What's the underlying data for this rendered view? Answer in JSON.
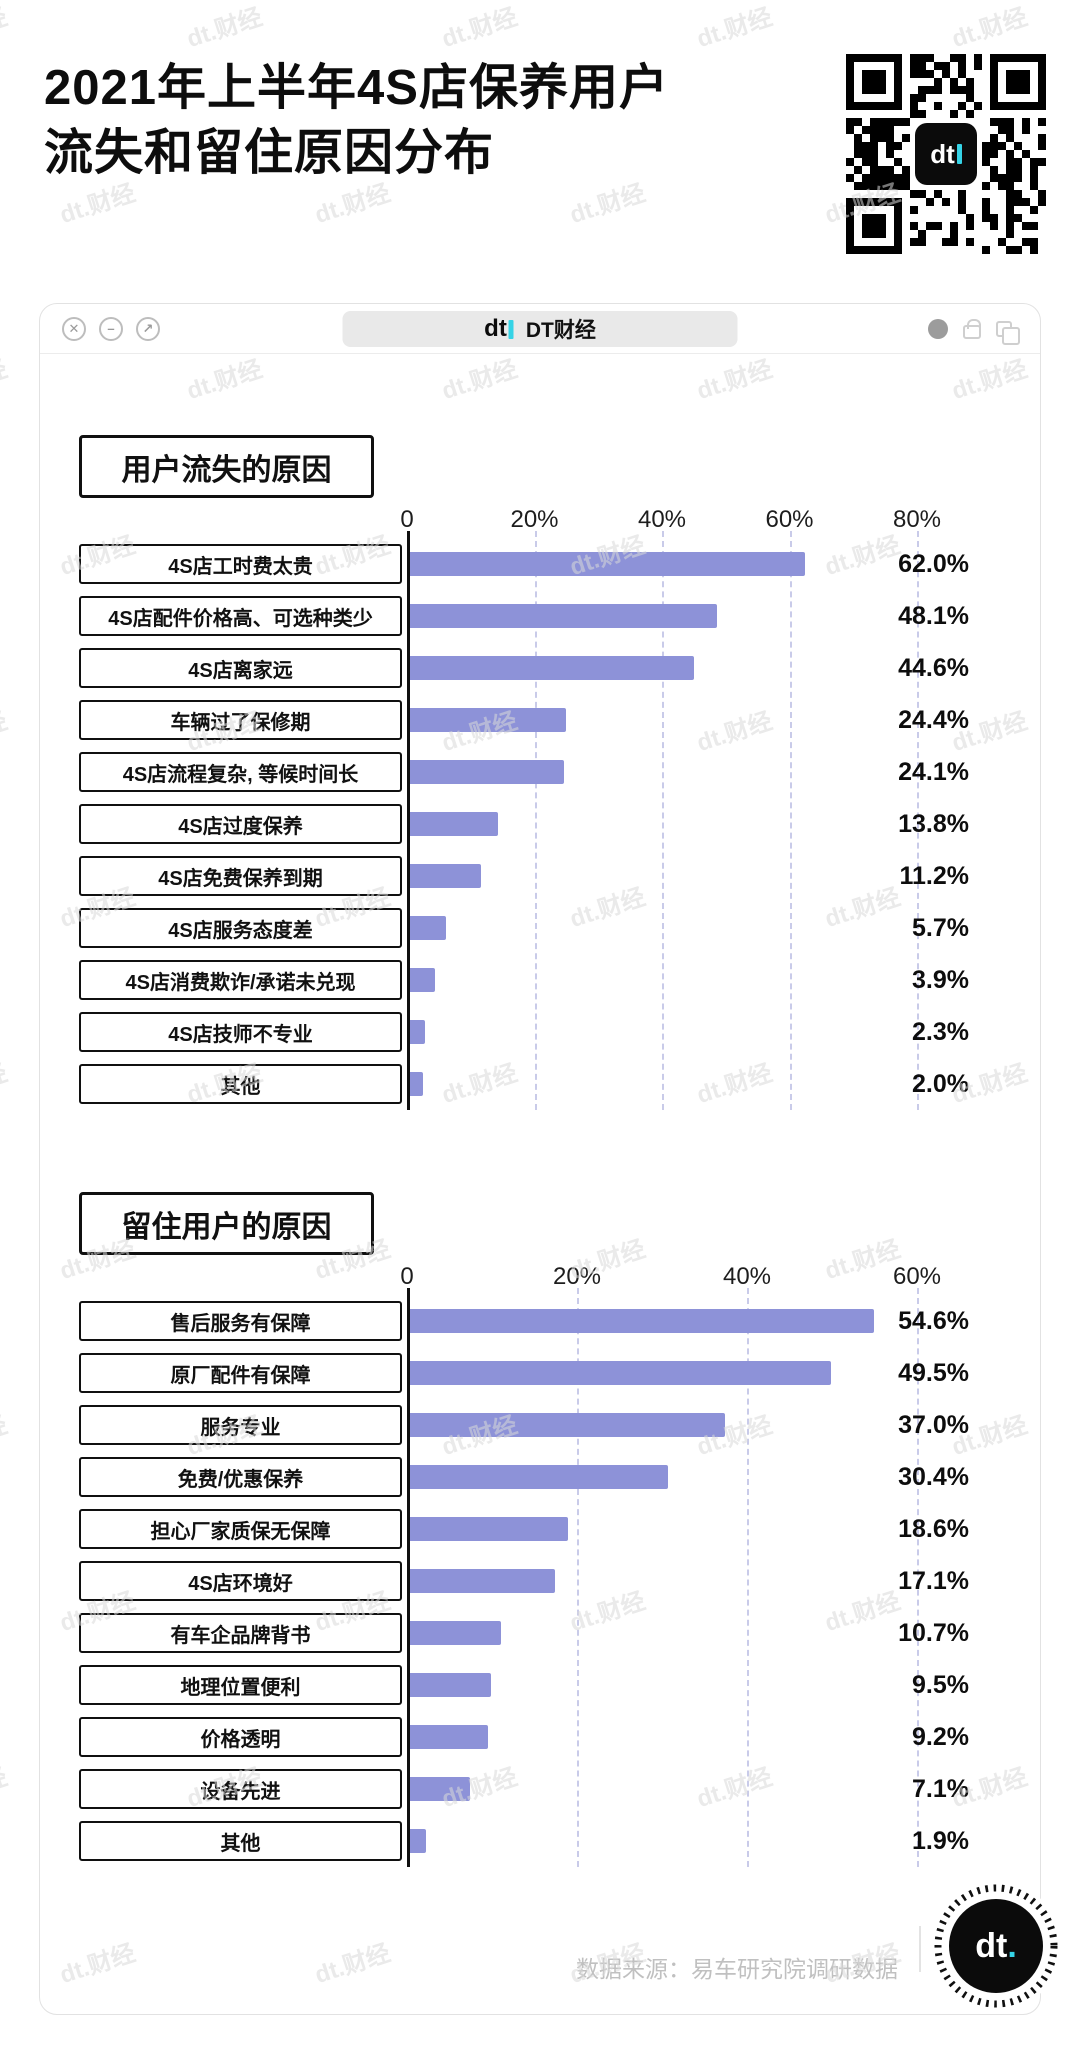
{
  "page": {
    "title_line1": "2021年上半年4S店保养用户",
    "title_line2": "流失和留住原因分布",
    "watermark_text": "dt.财经"
  },
  "qr": {
    "center_logo": "dt"
  },
  "window": {
    "brand_logo": "dt",
    "brand_name": "DT财经",
    "controls": [
      {
        "name": "close",
        "glyph": "✕"
      },
      {
        "name": "minimize",
        "glyph": "–"
      },
      {
        "name": "external",
        "glyph": "↗"
      }
    ]
  },
  "footer": {
    "source": "数据来源：易车研究院调研数据",
    "stamp_logo": "dt"
  },
  "colors": {
    "bar": "#8d92d8",
    "grid": "#c9cbe9",
    "accent_cyan": "#35d3e6"
  },
  "chart_data": [
    {
      "type": "bar",
      "orientation": "horizontal",
      "title": "用户流失的原因",
      "xlim": [
        0,
        80
      ],
      "x_ticks": [
        "0",
        "20%",
        "40%",
        "60%",
        "80%"
      ],
      "grid": "dashed-vertical",
      "categories": [
        "4S店工时费太贵",
        "4S店配件价格高、可选种类少",
        "4S店离家远",
        "车辆过了保修期",
        "4S店流程复杂, 等候时间长",
        "4S店过度保养",
        "4S店免费保养到期",
        "4S店服务态度差",
        "4S店消费欺诈/承诺未兑现",
        "4S店技师不专业",
        "其他"
      ],
      "values": [
        62.0,
        48.1,
        44.6,
        24.4,
        24.1,
        13.8,
        11.2,
        5.7,
        3.9,
        2.3,
        2.0
      ],
      "value_labels": [
        "62.0%",
        "48.1%",
        "44.6%",
        "24.4%",
        "24.1%",
        "13.8%",
        "11.2%",
        "5.7%",
        "3.9%",
        "2.3%",
        "2.0%"
      ]
    },
    {
      "type": "bar",
      "orientation": "horizontal",
      "title": "留住用户的原因",
      "xlim": [
        0,
        60
      ],
      "x_ticks": [
        "0",
        "20%",
        "40%",
        "60%"
      ],
      "grid": "dashed-vertical",
      "categories": [
        "售后服务有保障",
        "原厂配件有保障",
        "服务专业",
        "免费/优惠保养",
        "担心厂家质保无保障",
        "4S店环境好",
        "有车企品牌背书",
        "地理位置便利",
        "价格透明",
        "设备先进",
        "其他"
      ],
      "values": [
        54.6,
        49.5,
        37.0,
        30.4,
        18.6,
        17.1,
        10.7,
        9.5,
        9.2,
        7.1,
        1.9
      ],
      "value_labels": [
        "54.6%",
        "49.5%",
        "37.0%",
        "30.4%",
        "18.6%",
        "17.1%",
        "10.7%",
        "9.5%",
        "9.2%",
        "7.1%",
        "1.9%"
      ]
    }
  ]
}
